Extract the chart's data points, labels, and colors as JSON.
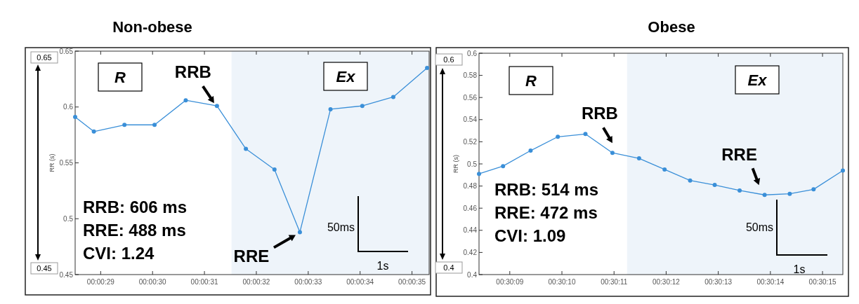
{
  "chart_data": [
    {
      "type": "line",
      "title": "Non-obese",
      "ylabel": "RR (s)",
      "marker": "circle",
      "grid": false,
      "xlim": [
        0.007919,
        0.009814
      ],
      "xticks": [
        {
          "value": 0.0080556,
          "label": "00:00:29"
        },
        {
          "value": 0.0083333,
          "label": "00:00:30"
        },
        {
          "value": 0.0086111,
          "label": "00:00:31"
        },
        {
          "value": 0.0088889,
          "label": "00:00:32"
        },
        {
          "value": 0.0091667,
          "label": "00:00:33"
        },
        {
          "value": 0.0094444,
          "label": "00:00:34"
        },
        {
          "value": 0.0097222,
          "label": "00:00:35"
        }
      ],
      "ylim": [
        0.45,
        0.65
      ],
      "yticks": [
        0.45,
        0.5,
        0.55,
        0.6,
        0.65
      ],
      "bands": [
        {
          "axis": "x",
          "from": 0.008756,
          "to": 0.009814,
          "color": "#eef4fa"
        }
      ],
      "series": [
        {
          "color": "#3a8fd8",
          "x": [
            0.007919,
            0.008019,
            0.008183,
            0.008344,
            0.008511,
            0.008678,
            0.008833,
            0.008986,
            0.009122,
            0.009286,
            0.009456,
            0.009622,
            0.009803
          ],
          "values": [
            0.591,
            0.578,
            0.584,
            0.584,
            0.606,
            0.601,
            0.5625,
            0.544,
            0.488,
            0.598,
            0.601,
            0.609,
            0.635
          ]
        }
      ],
      "annotations": [
        "R",
        "Ex",
        {
          "text": "RRB",
          "x": 0.008678,
          "y": 0.601
        },
        {
          "text": "RRE",
          "x": 0.009122,
          "y": 0.488
        },
        "RRB: 606 ms",
        "RRE: 488 ms",
        "CVI: 1.24",
        "50ms",
        "1s",
        "0.65",
        "0.45"
      ]
    },
    {
      "type": "line",
      "title": "Obese",
      "ylabel": "RR (s)",
      "marker": "circle",
      "grid": false,
      "xlim": [
        0.502336,
        0.504275
      ],
      "xticks": [
        {
          "value": 0.5025,
          "label": "00:30:09"
        },
        {
          "value": 0.5027778,
          "label": "00:30:10"
        },
        {
          "value": 0.5030556,
          "label": "00:30:11"
        },
        {
          "value": 0.5033333,
          "label": "00:30:12"
        },
        {
          "value": 0.5036111,
          "label": "00:30:13"
        },
        {
          "value": 0.5038889,
          "label": "00:30:14"
        },
        {
          "value": 0.5041667,
          "label": "00:30:15"
        }
      ],
      "ylim": [
        0.4,
        0.6
      ],
      "yticks": [
        0.4,
        0.42,
        0.44,
        0.46,
        0.48,
        0.5,
        0.52,
        0.54,
        0.56,
        0.58,
        0.6
      ],
      "bands": [
        {
          "axis": "x",
          "from": 0.503125,
          "to": 0.504275,
          "color": "#eef4fa"
        }
      ],
      "series": [
        {
          "color": "#3a8fd8",
          "x": [
            0.502336,
            0.502464,
            0.502611,
            0.502756,
            0.502903,
            0.503047,
            0.503189,
            0.503325,
            0.503461,
            0.503592,
            0.503725,
            0.503858,
            0.503992,
            0.504119,
            0.504275
          ],
          "values": [
            0.491,
            0.498,
            0.512,
            0.5245,
            0.527,
            0.51,
            0.505,
            0.495,
            0.485,
            0.481,
            0.476,
            0.472,
            0.473,
            0.477,
            0.494
          ]
        }
      ],
      "annotations": [
        "R",
        "Ex",
        {
          "text": "RRB",
          "x": 0.503047,
          "y": 0.51
        },
        {
          "text": "RRE",
          "x": 0.503858,
          "y": 0.472
        },
        "RRB: 514 ms",
        "RRE: 472 ms",
        "CVI: 1.09",
        "50ms",
        "1s",
        "0.6",
        "0.4"
      ]
    }
  ]
}
